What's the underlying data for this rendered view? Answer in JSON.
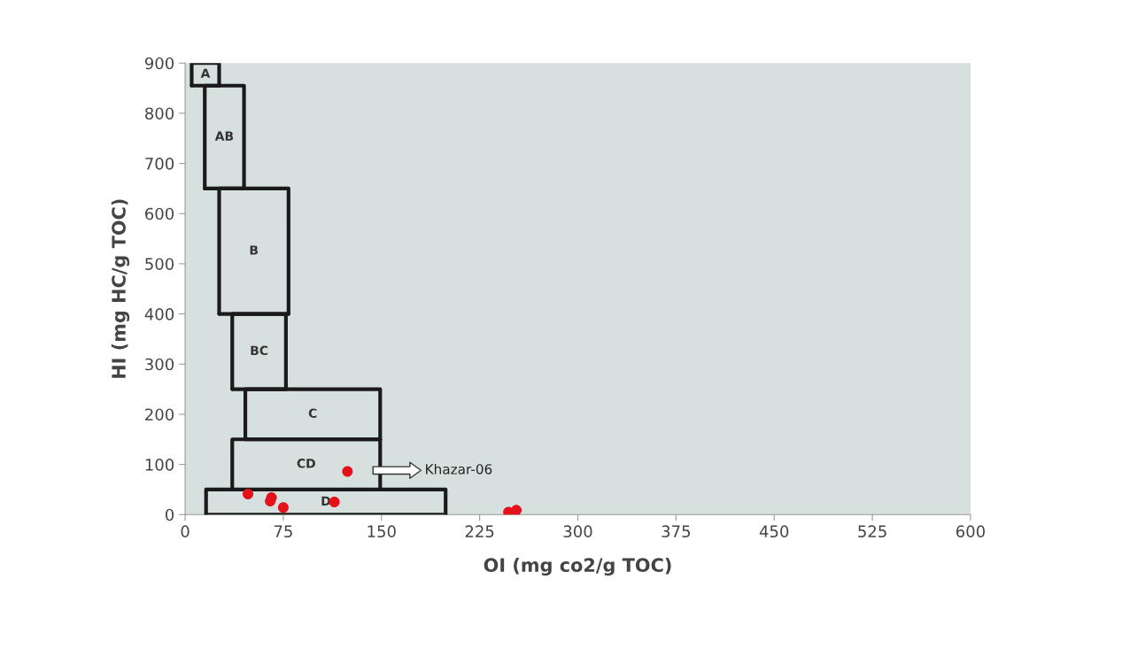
{
  "chart_data": {
    "type": "scatter",
    "xlabel": "OI (mg co2/g TOC)",
    "ylabel": "HI (mg HC/g TOC)",
    "xlim": [
      0,
      600
    ],
    "xticks": [
      0,
      75,
      150,
      225,
      300,
      375,
      450,
      525,
      600
    ],
    "ylim": [
      0,
      900
    ],
    "yticks": [
      0,
      100,
      200,
      300,
      400,
      500,
      600,
      700,
      800,
      900
    ],
    "grid": false,
    "legend": false,
    "series": [
      {
        "type": "scatter",
        "color": "#e3121b",
        "marker": "circle",
        "x": [
          48,
          66,
          65,
          75,
          114,
          124,
          247,
          253
        ],
        "values": [
          41,
          34,
          27,
          14,
          25,
          86,
          5,
          9
        ]
      },
      {
        "type": "line",
        "name": "A",
        "color": "#1a1a1a",
        "marker": "none",
        "x": [
          5,
          5,
          26,
          26
        ],
        "values": [
          855,
          900,
          900,
          855
        ]
      },
      {
        "type": "line",
        "color": "#1a1a1a",
        "marker": "none",
        "x": [
          5,
          26
        ],
        "values": [
          855,
          855
        ]
      },
      {
        "type": "line",
        "name": "AB",
        "color": "#1a1a1a",
        "marker": "none",
        "x": [
          15,
          15,
          45,
          45
        ],
        "values": [
          650,
          855,
          855,
          650
        ]
      },
      {
        "type": "line",
        "color": "#1a1a1a",
        "marker": "none",
        "x": [
          15,
          45
        ],
        "values": [
          650,
          650
        ]
      },
      {
        "type": "line",
        "name": "B",
        "color": "#1a1a1a",
        "marker": "none",
        "x": [
          26,
          26,
          79,
          79
        ],
        "values": [
          400,
          650,
          650,
          400
        ]
      },
      {
        "type": "line",
        "color": "#1a1a1a",
        "marker": "none",
        "x": [
          26,
          79
        ],
        "values": [
          400,
          400
        ]
      },
      {
        "type": "line",
        "name": "BC",
        "color": "#1a1a1a",
        "marker": "none",
        "x": [
          36,
          36,
          77,
          77
        ],
        "values": [
          250,
          400,
          400,
          250
        ]
      },
      {
        "type": "line",
        "color": "#1a1a1a",
        "marker": "none",
        "x": [
          36,
          77
        ],
        "values": [
          250,
          250
        ]
      },
      {
        "type": "line",
        "name": "C",
        "color": "#1a1a1a",
        "marker": "none",
        "x": [
          46,
          46,
          149,
          149
        ],
        "values": [
          150,
          250,
          250,
          150
        ]
      },
      {
        "type": "line",
        "color": "#1a1a1a",
        "marker": "none",
        "x": [
          46,
          149
        ],
        "values": [
          150,
          150
        ]
      },
      {
        "type": "line",
        "name": "CD",
        "color": "#1a1a1a",
        "marker": "none",
        "x": [
          36,
          36,
          149,
          149
        ],
        "values": [
          50,
          150,
          150,
          50
        ]
      },
      {
        "type": "line",
        "name": "D",
        "color": "#1a1a1a",
        "marker": "none",
        "x": [
          16,
          16,
          199,
          199
        ],
        "values": [
          0,
          50,
          50,
          0
        ]
      },
      {
        "type": "line",
        "color": "#1a1a1a",
        "marker": "none",
        "x": [
          16,
          199
        ],
        "values": [
          0,
          0
        ]
      }
    ],
    "annotations": [
      "Khazar-06"
    ]
  }
}
